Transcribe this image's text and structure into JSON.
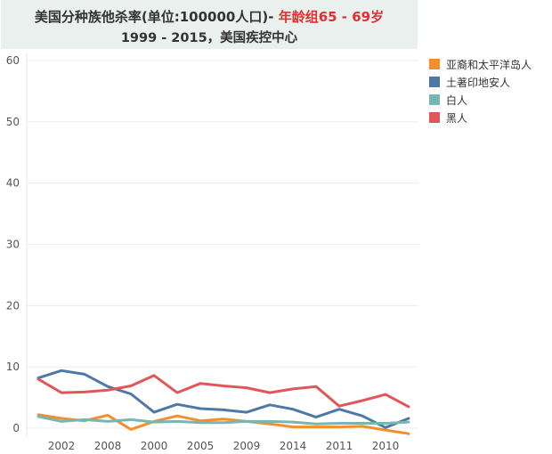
{
  "title": {
    "line1_prefix": "美国分种族他杀率(单位:100000人口)-",
    "line1_highlight": "年龄组65 - 69岁",
    "line2": "1999 - 2015，美国疾控中心"
  },
  "chart_data": {
    "type": "line",
    "x_tick_labels": [
      "2002",
      "2008",
      "2000",
      "2005",
      "2009",
      "2014",
      "2011",
      "2010"
    ],
    "x_index": [
      0,
      1,
      2,
      3,
      4,
      5,
      6,
      7,
      8,
      9,
      10,
      11,
      12,
      13,
      14,
      15,
      16
    ],
    "y_ticks": [
      0,
      10,
      20,
      30,
      40,
      50,
      60
    ],
    "ylim": [
      0,
      60
    ],
    "grid": true,
    "legend_position": "right",
    "series": [
      {
        "name": "亚裔和太平洋岛人",
        "color": "#f28e2b",
        "values": [
          2.2,
          1.6,
          1.2,
          2.1,
          -0.2,
          1.1,
          2.0,
          1.2,
          1.5,
          1.1,
          0.7,
          0.2,
          0.2,
          0.2,
          0.3,
          -0.3,
          -0.9
        ]
      },
      {
        "name": "土著印地安人",
        "color": "#4e79a7",
        "values": [
          8.2,
          9.4,
          8.8,
          6.8,
          5.6,
          2.6,
          3.9,
          3.2,
          3.0,
          2.6,
          3.8,
          3.1,
          1.8,
          3.1,
          2.0,
          0.1,
          1.6
        ]
      },
      {
        "name": "白人",
        "color": "#76b7b2",
        "values": [
          1.9,
          1.1,
          1.4,
          1.1,
          1.4,
          1.0,
          1.1,
          0.9,
          0.9,
          1.1,
          1.1,
          1.0,
          0.7,
          0.8,
          0.8,
          0.8,
          1.0
        ]
      },
      {
        "name": "黑人",
        "color": "#e15759",
        "values": [
          8.0,
          5.8,
          5.9,
          6.2,
          6.9,
          8.6,
          5.8,
          7.3,
          6.9,
          6.6,
          5.8,
          6.4,
          6.8,
          3.6,
          4.5,
          5.5,
          3.5
        ]
      }
    ]
  }
}
